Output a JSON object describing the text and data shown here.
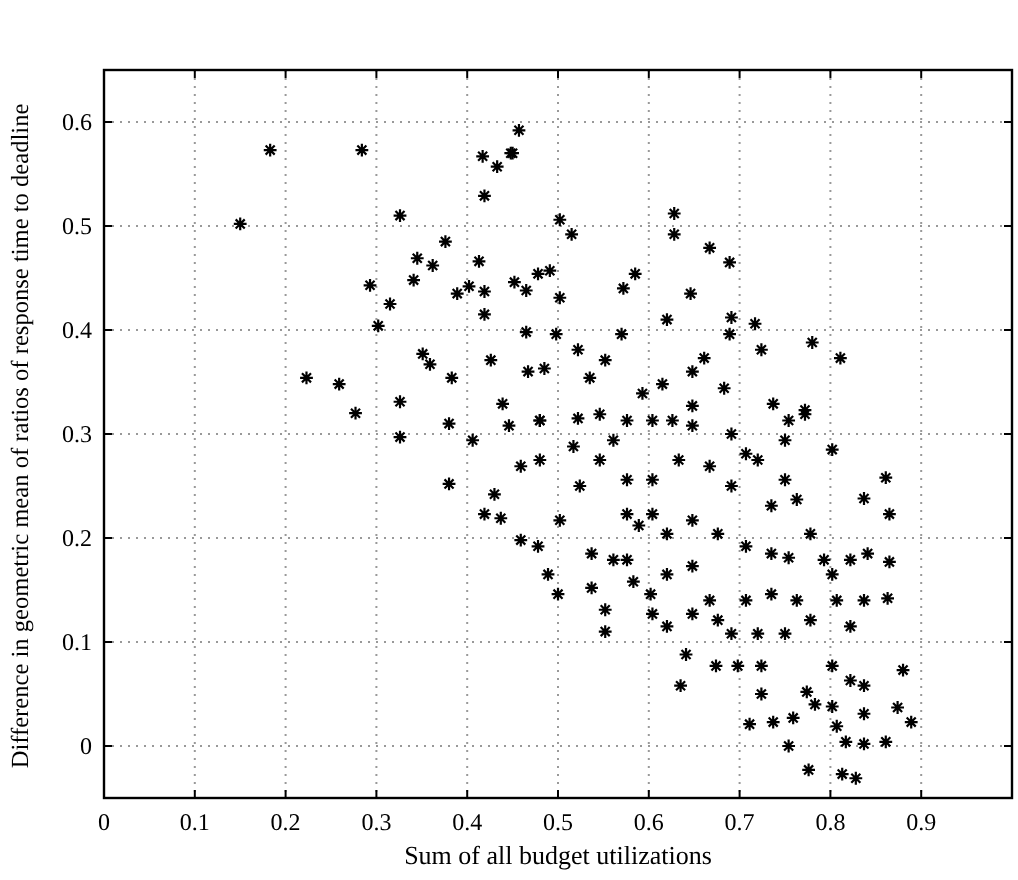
{
  "chart_data": {
    "type": "scatter",
    "xlabel": "Sum of all budget utilizations",
    "ylabel": "Difference in geometric mean of ratios of response time to deadline",
    "xlim": [
      0,
      1
    ],
    "ylim": [
      -0.05,
      0.65
    ],
    "xticks": [
      0,
      0.1,
      0.2,
      0.3,
      0.4,
      0.5,
      0.6,
      0.7,
      0.8,
      0.9
    ],
    "yticks": [
      0,
      0.1,
      0.2,
      0.3,
      0.4,
      0.5,
      0.6
    ],
    "grid": true,
    "marker": "cross",
    "series": [
      {
        "color": "#000000",
        "x": [
          0.15,
          0.183,
          0.284,
          0.326,
          0.223,
          0.259,
          0.277,
          0.293,
          0.302,
          0.315,
          0.326,
          0.326,
          0.341,
          0.345,
          0.362,
          0.376,
          0.351,
          0.359,
          0.383,
          0.389,
          0.402,
          0.413,
          0.419,
          0.419,
          0.417,
          0.433,
          0.448,
          0.426,
          0.406,
          0.38,
          0.419,
          0.457,
          0.45,
          0.502,
          0.515,
          0.628,
          0.628,
          0.667,
          0.689,
          0.452,
          0.465,
          0.478,
          0.491,
          0.502,
          0.585,
          0.572,
          0.646,
          0.62,
          0.691,
          0.717,
          0.689,
          0.724,
          0.78,
          0.811,
          0.57,
          0.522,
          0.498,
          0.465,
          0.661,
          0.737,
          0.754,
          0.772,
          0.802,
          0.467,
          0.485,
          0.535,
          0.552,
          0.593,
          0.615,
          0.648,
          0.683,
          0.439,
          0.48,
          0.522,
          0.576,
          0.648,
          0.626,
          0.437,
          0.459,
          0.478,
          0.489,
          0.5,
          0.537,
          0.537,
          0.552,
          0.552,
          0.583,
          0.62,
          0.641,
          0.635,
          0.674,
          0.698,
          0.724,
          0.724,
          0.711,
          0.737,
          0.754,
          0.759,
          0.776,
          0.774,
          0.783,
          0.802,
          0.807,
          0.813,
          0.828,
          0.817,
          0.837,
          0.837,
          0.861,
          0.874,
          0.889,
          0.88,
          0.822,
          0.837,
          0.863,
          0.865,
          0.865,
          0.861,
          0.837,
          0.841,
          0.822,
          0.802,
          0.802,
          0.75,
          0.754,
          0.735,
          0.707,
          0.676,
          0.648,
          0.604,
          0.602,
          0.576,
          0.561,
          0.502,
          0.524,
          0.546,
          0.576,
          0.604,
          0.633,
          0.648,
          0.691,
          0.707,
          0.735,
          0.763,
          0.778,
          0.793,
          0.807,
          0.822,
          0.837,
          0.778,
          0.763,
          0.75,
          0.72,
          0.691,
          0.667,
          0.648,
          0.62,
          0.62,
          0.589,
          0.576,
          0.604,
          0.648,
          0.676,
          0.707,
          0.735,
          0.691,
          0.667,
          0.72,
          0.75,
          0.772,
          0.446,
          0.459,
          0.48,
          0.48,
          0.517,
          0.561,
          0.546,
          0.604,
          0.43,
          0.38,
          0.419
        ],
        "values": [
          0.502,
          0.573,
          0.573,
          0.51,
          0.354,
          0.348,
          0.32,
          0.443,
          0.404,
          0.425,
          0.331,
          0.297,
          0.448,
          0.469,
          0.462,
          0.485,
          0.377,
          0.367,
          0.354,
          0.435,
          0.442,
          0.466,
          0.437,
          0.529,
          0.567,
          0.557,
          0.57,
          0.371,
          0.294,
          0.31,
          0.415,
          0.592,
          0.57,
          0.506,
          0.492,
          0.512,
          0.492,
          0.479,
          0.465,
          0.446,
          0.438,
          0.454,
          0.457,
          0.431,
          0.454,
          0.44,
          0.435,
          0.41,
          0.412,
          0.406,
          0.396,
          0.381,
          0.388,
          0.373,
          0.396,
          0.381,
          0.396,
          0.398,
          0.373,
          0.329,
          0.313,
          0.323,
          0.285,
          0.36,
          0.363,
          0.354,
          0.371,
          0.339,
          0.348,
          0.36,
          0.344,
          0.329,
          0.313,
          0.315,
          0.313,
          0.327,
          0.313,
          0.219,
          0.198,
          0.192,
          0.165,
          0.146,
          0.185,
          0.152,
          0.131,
          0.11,
          0.158,
          0.115,
          0.088,
          0.058,
          0.077,
          0.077,
          0.077,
          0.05,
          0.021,
          0.023,
          0.0,
          0.027,
          -0.023,
          0.052,
          0.04,
          0.038,
          0.019,
          -0.027,
          -0.031,
          0.004,
          0.002,
          0.031,
          0.004,
          0.037,
          0.023,
          0.073,
          0.063,
          0.058,
          0.142,
          0.177,
          0.223,
          0.258,
          0.238,
          0.185,
          0.179,
          0.165,
          0.077,
          0.256,
          0.181,
          0.146,
          0.14,
          0.121,
          0.127,
          0.127,
          0.146,
          0.179,
          0.179,
          0.217,
          0.25,
          0.275,
          0.256,
          0.256,
          0.275,
          0.308,
          0.3,
          0.281,
          0.231,
          0.237,
          0.204,
          0.179,
          0.14,
          0.115,
          0.14,
          0.121,
          0.14,
          0.108,
          0.108,
          0.108,
          0.14,
          0.173,
          0.165,
          0.204,
          0.212,
          0.223,
          0.223,
          0.217,
          0.204,
          0.192,
          0.185,
          0.25,
          0.269,
          0.275,
          0.294,
          0.319,
          0.308,
          0.269,
          0.275,
          0.313,
          0.288,
          0.294,
          0.319,
          0.313,
          0.242,
          0.252,
          0.223
        ]
      }
    ]
  }
}
